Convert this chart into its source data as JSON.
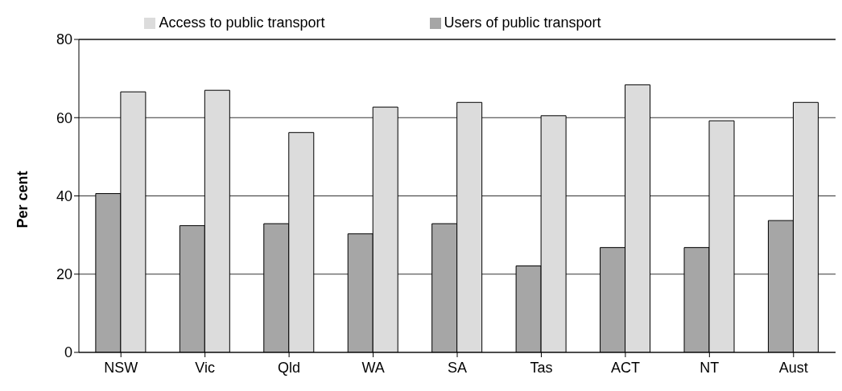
{
  "chart_data": {
    "type": "bar",
    "ylabel": "Per cent",
    "categories": [
      "NSW",
      "Vic",
      "Qld",
      "WA",
      "SA",
      "Tas",
      "ACT",
      "NT",
      "Aust"
    ],
    "series": [
      {
        "name": "Users of public transport",
        "color": "#a6a6a6",
        "values": [
          40.6,
          32.4,
          32.9,
          30.3,
          32.9,
          22.1,
          26.8,
          26.8,
          33.7
        ]
      },
      {
        "name": "Access to public transport",
        "color": "#dcdcdc",
        "values": [
          66.6,
          67.0,
          56.2,
          62.7,
          63.9,
          60.5,
          68.4,
          59.2,
          63.9
        ]
      }
    ],
    "ylim": [
      0,
      80
    ],
    "yticks": [
      0,
      20,
      40,
      60,
      80
    ],
    "grid": "y",
    "legend": "top"
  }
}
